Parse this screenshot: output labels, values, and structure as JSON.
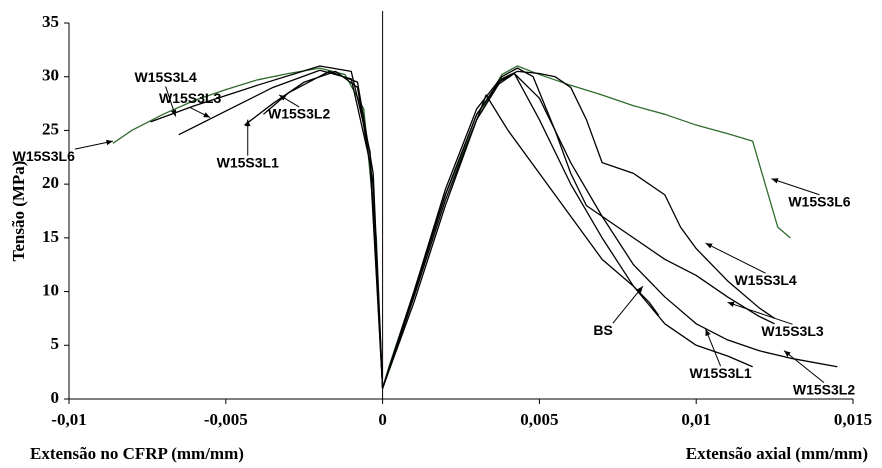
{
  "chart_data": {
    "type": "line",
    "ylabel": "Tensão (MPa)",
    "xlabel_left": "Extensão no CFRP (mm/mm)",
    "xlabel_right": "Extensão axial (mm/mm)",
    "xlim": [
      -0.01,
      0.015
    ],
    "ylim": [
      0,
      35
    ],
    "xticks": [
      {
        "value": -0.01,
        "label": "-0,01"
      },
      {
        "value": -0.005,
        "label": "-0,005"
      },
      0,
      {
        "value": 0.005,
        "label": "0,005"
      },
      {
        "value": 0.01,
        "label": "0,01"
      },
      {
        "value": 0.015,
        "label": "0,015"
      }
    ],
    "yticks": [
      0,
      5,
      10,
      15,
      20,
      25,
      30,
      35
    ],
    "series": [
      {
        "name": "W15S3L6",
        "color": "#2f6b2f",
        "x": [
          -0.0086,
          -0.008,
          -0.007,
          -0.006,
          -0.005,
          -0.004,
          -0.003,
          -0.002,
          -0.0012,
          -0.0006,
          -0.0002,
          0,
          0.0002,
          0.001,
          0.002,
          0.003,
          0.0038,
          0.0043,
          0.005,
          0.006,
          0.007,
          0.008,
          0.009,
          0.01,
          0.011,
          0.0118,
          0.0122,
          0.0126,
          0.013
        ],
        "values": [
          23.8,
          25.0,
          26.5,
          27.8,
          28.8,
          29.7,
          30.3,
          30.8,
          30.2,
          27,
          15,
          1,
          3,
          10,
          19,
          26,
          30.2,
          31,
          30.2,
          29.2,
          28.3,
          27.3,
          26.5,
          25.5,
          24.7,
          24.0,
          20,
          16,
          15
        ]
      },
      {
        "name": "W15S3L1",
        "color": "#000000",
        "x": [
          -0.0044,
          -0.0035,
          -0.0025,
          -0.0015,
          -0.0008,
          -0.0003,
          0,
          0.001,
          0.002,
          0.003,
          0.0037,
          0.0042,
          0.005,
          0.006,
          0.007,
          0.008,
          0.009,
          0.01,
          0.011,
          0.0118
        ],
        "values": [
          25.5,
          27.5,
          29.5,
          30.5,
          29,
          20,
          1,
          10,
          19,
          26.5,
          29.5,
          30.3,
          26,
          20,
          15,
          10.5,
          7,
          5,
          4,
          3
        ]
      },
      {
        "name": "W15S3L2",
        "color": "#000000",
        "x": [
          -0.0038,
          -0.003,
          -0.0017,
          -0.0008,
          -0.0003,
          0,
          0.001,
          0.002,
          0.003,
          0.0037,
          0.0042,
          0.005,
          0.006,
          0.007,
          0.008,
          0.009,
          0.01,
          0.011,
          0.012,
          0.013,
          0.0145
        ],
        "values": [
          26.5,
          28.5,
          30.5,
          29.5,
          21,
          1,
          9.5,
          18.5,
          26,
          29.3,
          30.3,
          28,
          22,
          17,
          12.5,
          9.5,
          7,
          5.5,
          4.5,
          3.8,
          3
        ]
      },
      {
        "name": "W15S3L3",
        "color": "#000000",
        "x": [
          -0.0065,
          -0.005,
          -0.0035,
          -0.002,
          -0.001,
          -0.0004,
          0,
          0.001,
          0.002,
          0.003,
          0.0038,
          0.0043,
          0.0048,
          0.0055,
          0.006,
          0.0065,
          0.007,
          0.008,
          0.009,
          0.01,
          0.011,
          0.012,
          0.0125
        ],
        "values": [
          24.6,
          26.8,
          29,
          30.6,
          29.8,
          22,
          1,
          10,
          19.5,
          27,
          30,
          30.8,
          30,
          25,
          21,
          18,
          17,
          15,
          13,
          11.5,
          9.5,
          7.7,
          7
        ]
      },
      {
        "name": "W15S3L4",
        "color": "#000000",
        "x": [
          -0.0074,
          -0.006,
          -0.004,
          -0.002,
          -0.001,
          -0.0004,
          0,
          0.001,
          0.002,
          0.003,
          0.0038,
          0.0043,
          0.005,
          0.0055,
          0.006,
          0.0065,
          0.007,
          0.008,
          0.009,
          0.0095,
          0.01,
          0.011,
          0.012,
          0.0125
        ],
        "values": [
          25.8,
          27.3,
          29.2,
          31,
          30.5,
          23,
          1,
          9.8,
          19,
          26.5,
          29.8,
          30.5,
          30.3,
          30,
          29,
          26,
          22,
          21,
          19,
          16,
          14,
          11,
          8.5,
          7.5
        ]
      },
      {
        "name": "BS",
        "color": "#000000",
        "x": [
          0,
          0.001,
          0.002,
          0.003,
          0.0033,
          0.004,
          0.005,
          0.006,
          0.007,
          0.008,
          0.0085,
          0.0088
        ],
        "values": [
          1,
          9,
          18,
          26,
          28.3,
          25,
          21,
          17,
          13,
          10.5,
          9,
          7.8
        ]
      }
    ],
    "annotations": [
      {
        "text": "W15S3L4",
        "x": -0.0066,
        "y": 26.3
      },
      {
        "text": "W15S3L3",
        "x": -0.0055,
        "y": 26.2
      },
      {
        "text": "W15S3L6",
        "x": -0.0086,
        "y": 24
      },
      {
        "text": "W15S3L1",
        "x": -0.0043,
        "y": 26
      },
      {
        "text": "W15S3L2",
        "x": -0.0033,
        "y": 28.3
      },
      {
        "text": "W15S3L6",
        "x": 0.0124,
        "y": 20.5
      },
      {
        "text": "W15S3L4",
        "x": 0.0103,
        "y": 14.5
      },
      {
        "text": "W15S3L3",
        "x": 0.011,
        "y": 9
      },
      {
        "text": "BS",
        "x": 0.0083,
        "y": 10.5
      },
      {
        "text": "W15S3L1",
        "x": 0.0103,
        "y": 6.5
      },
      {
        "text": "W15S3L2",
        "x": 0.0128,
        "y": 4.5
      }
    ]
  }
}
